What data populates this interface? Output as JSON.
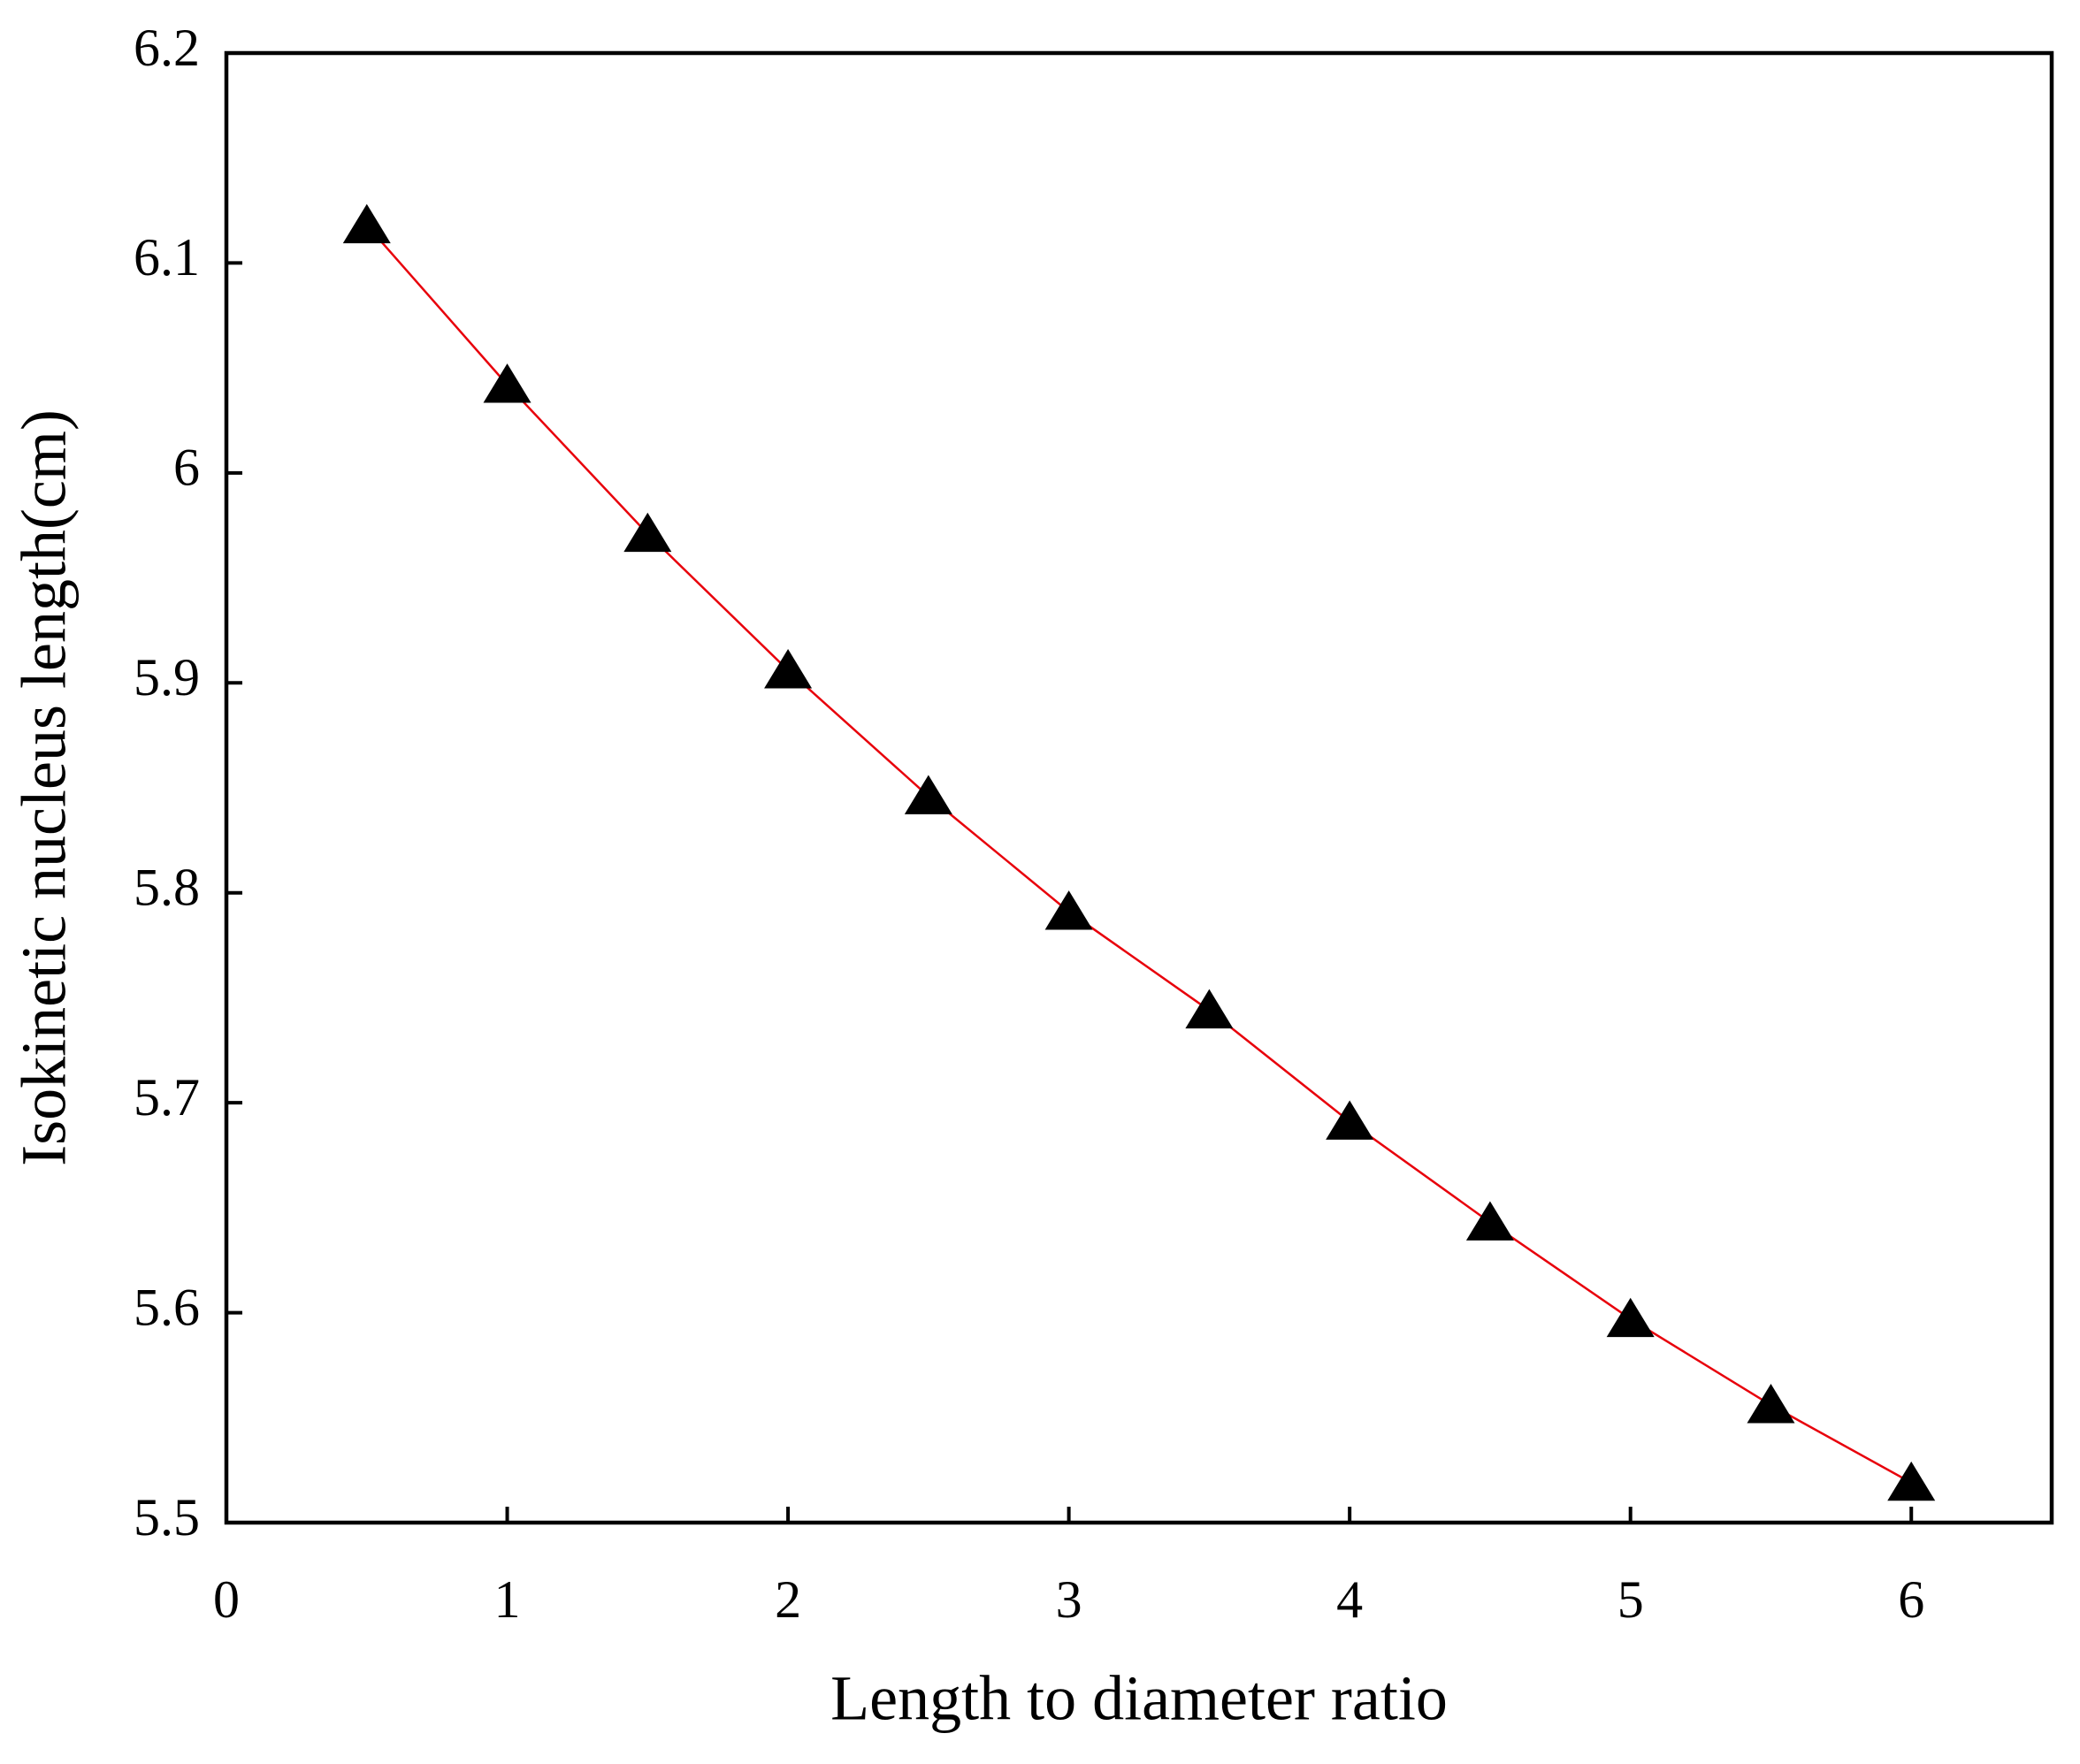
{
  "chart_data": {
    "type": "line",
    "x_label": "Length to diameter ratio",
    "y_label": "Isokinetic nucleus length(cm)",
    "x": [
      0.5,
      1,
      1.5,
      2,
      2.5,
      3,
      3.5,
      4,
      4.5,
      5,
      5.5,
      6
    ],
    "series": [
      {
        "color": "#e8000b",
        "marker_color": "#000000",
        "values": [
          6.118,
          6.042,
          5.971,
          5.906,
          5.846,
          5.791,
          5.744,
          5.691,
          5.643,
          5.597,
          5.556,
          5.519
        ]
      }
    ],
    "xlim": [
      0,
      6.5
    ],
    "xticks": [
      0,
      1,
      2,
      3,
      4,
      5,
      6
    ],
    "ylim": [
      5.5,
      6.2
    ],
    "yticks": [
      5.5,
      5.6,
      5.7,
      5.8,
      5.9,
      6.0,
      6.1,
      6.2
    ],
    "grid": false
  }
}
